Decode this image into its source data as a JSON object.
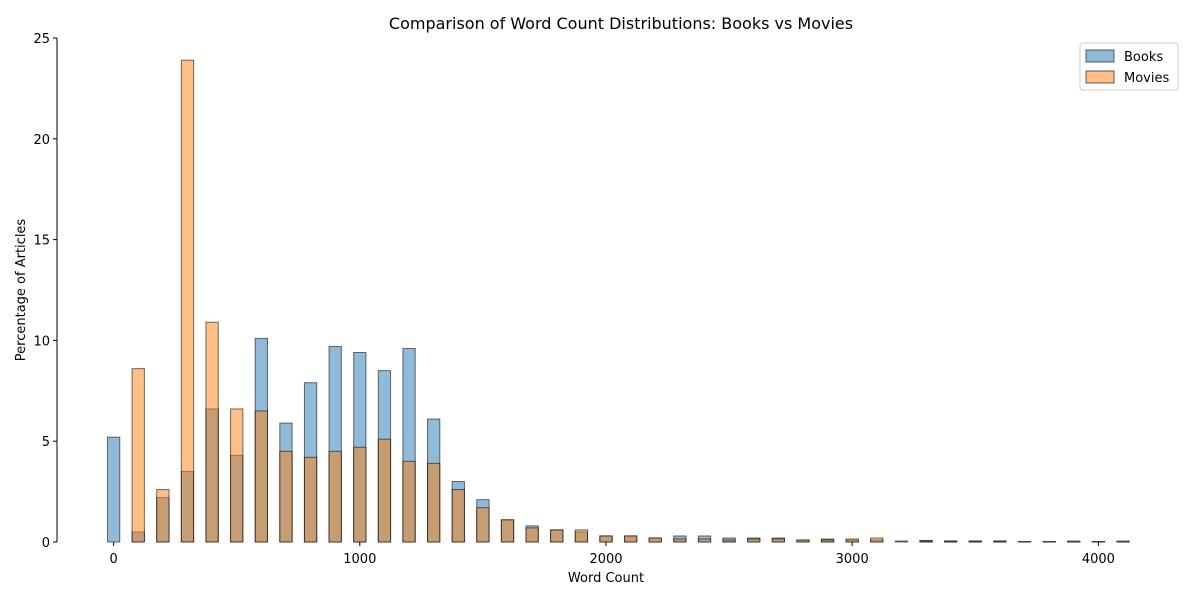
{
  "chart_data": {
    "type": "bar",
    "title": "Comparison of Word Count Distributions: Books vs Movies",
    "xlabel": "Word Count",
    "ylabel": "Percentage of Articles",
    "xlim": [
      -230,
      4230
    ],
    "ylim": [
      0,
      25
    ],
    "xticks": [
      0,
      1000,
      2000,
      3000,
      4000
    ],
    "yticks": [
      0,
      5,
      10,
      15,
      20,
      25
    ],
    "bin_width": 100,
    "bar_width": 50,
    "legend_position": "top-right",
    "series": [
      {
        "name": "Books",
        "color": "#1f77b4",
        "x": [
          0,
          100,
          200,
          300,
          400,
          500,
          600,
          700,
          800,
          900,
          1000,
          1100,
          1200,
          1300,
          1400,
          1500,
          1600,
          1700,
          1800,
          1900,
          2000,
          2100,
          2200,
          2300,
          2400,
          2500,
          2600,
          2700,
          2800,
          2900,
          3000,
          3100,
          3200,
          3300,
          3400,
          3500,
          3600,
          3700,
          3800,
          3900,
          4000,
          4100
        ],
        "values": [
          5.2,
          0.5,
          2.2,
          3.5,
          6.6,
          4.3,
          10.1,
          5.9,
          7.9,
          9.7,
          9.4,
          8.5,
          9.6,
          6.1,
          3.0,
          2.1,
          1.1,
          0.8,
          0.6,
          0.5,
          0.3,
          0.3,
          0.2,
          0.3,
          0.3,
          0.2,
          0.2,
          0.2,
          0.1,
          0.15,
          0.1,
          0.1,
          0.05,
          0.08,
          0.05,
          0.05,
          0.05,
          0.02,
          0.02,
          0.02,
          0.02,
          0.02
        ]
      },
      {
        "name": "Movies",
        "color": "#ff7f0e",
        "x": [
          0,
          100,
          200,
          300,
          400,
          500,
          600,
          700,
          800,
          900,
          1000,
          1100,
          1200,
          1300,
          1400,
          1500,
          1600,
          1700,
          1800,
          1900,
          2000,
          2100,
          2200,
          2300,
          2400,
          2500,
          2600,
          2700,
          2800,
          2900,
          3000,
          3100,
          3200,
          3300,
          3400,
          3500,
          3600,
          3700,
          3800,
          3900,
          4000,
          4100
        ],
        "values": [
          0.0,
          8.6,
          2.6,
          23.9,
          10.9,
          6.6,
          6.5,
          4.5,
          4.2,
          4.5,
          4.7,
          5.1,
          4.0,
          3.9,
          2.6,
          1.7,
          1.1,
          0.7,
          0.6,
          0.6,
          0.3,
          0.3,
          0.2,
          0.15,
          0.15,
          0.1,
          0.15,
          0.15,
          0.1,
          0.1,
          0.15,
          0.2,
          0.0,
          0.05,
          0.05,
          0.05,
          0.05,
          0.02,
          0.02,
          0.05,
          0.02,
          0.05
        ]
      }
    ]
  }
}
